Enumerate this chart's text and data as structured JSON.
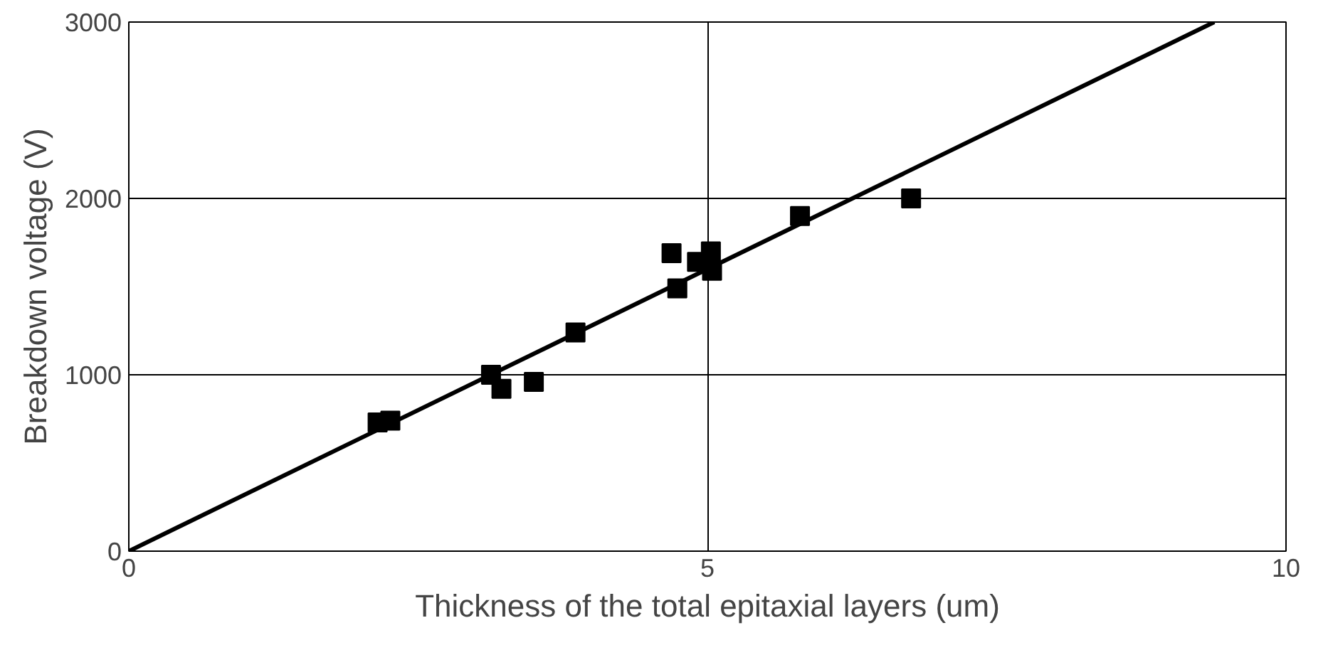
{
  "chart_data": {
    "type": "scatter",
    "xlabel": "Thickness of the total epitaxial layers (um)",
    "ylabel": "Breakdown voltage (V)",
    "xlim": [
      0,
      10
    ],
    "ylim": [
      0,
      3000
    ],
    "xticks": [
      0,
      5,
      10
    ],
    "yticks": [
      0,
      1000,
      2000,
      3000
    ],
    "grid": true,
    "marker": "square",
    "series": [
      {
        "color": "#000000",
        "x": [
          2.15,
          2.26,
          3.13,
          3.22,
          3.5,
          3.86,
          4.69,
          4.74,
          4.91,
          5.03,
          5.04,
          5.8,
          6.76
        ],
        "values": [
          730,
          740,
          1000,
          920,
          960,
          1240,
          1690,
          1490,
          1640,
          1700,
          1590,
          1900,
          2000
        ]
      },
      {
        "type": "line",
        "marker": "none",
        "color": "#000000",
        "x": [
          0,
          9.38
        ],
        "values": [
          0,
          3000
        ]
      }
    ]
  }
}
